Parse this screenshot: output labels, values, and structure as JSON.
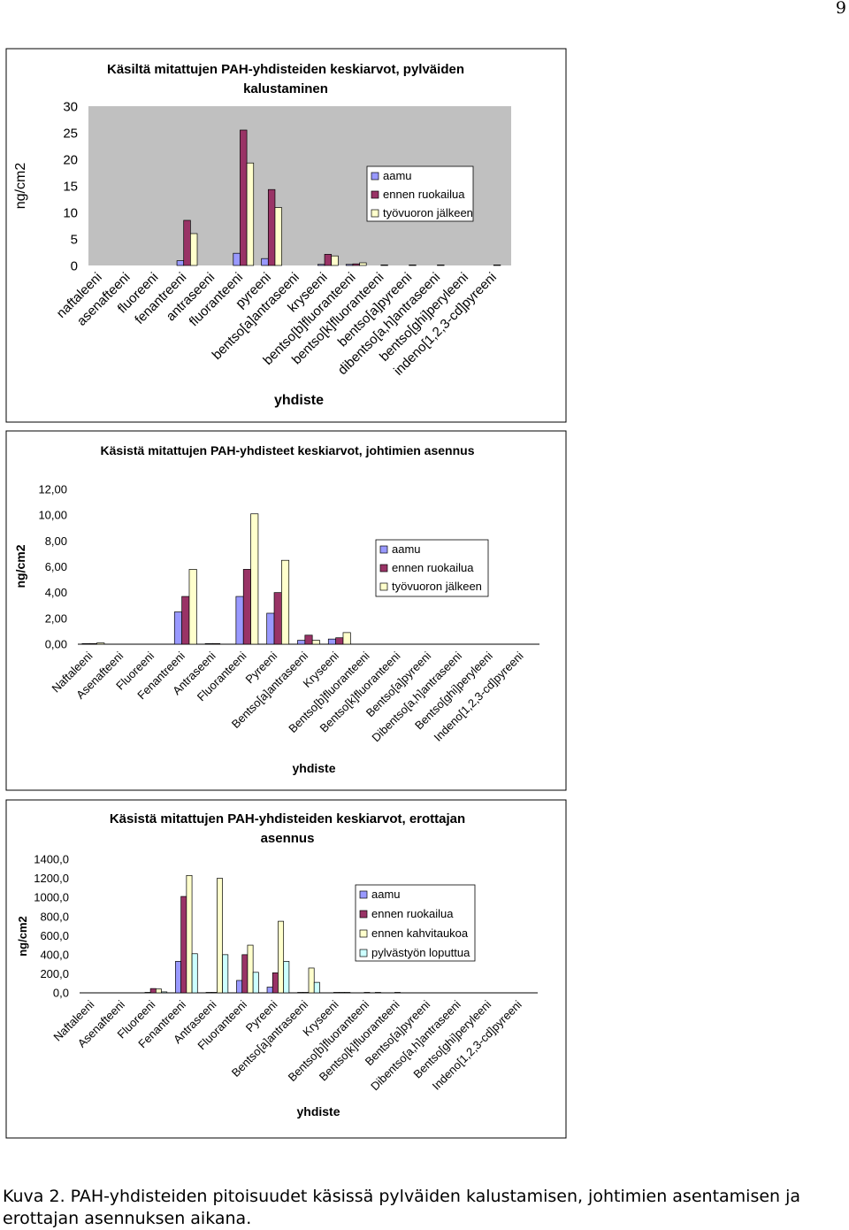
{
  "page_number": "9",
  "chart_data": [
    {
      "type": "bar",
      "title": "Käsiltä mitattujen PAH-yhdisteiden keskiarvot, pylväiden kalustaminen",
      "y_label": "ng/cm2",
      "x_label": "yhdiste",
      "plot_background": "#c0c0c0",
      "categories": [
        "naftaleeni",
        "asenafteeni",
        "fluoreeni",
        "fenantreeni",
        "antraseeni",
        "fluoranteeni",
        "pyreeni",
        "bentso[a]antraseeni",
        "kryseeni",
        "bentso[b]fluoranteeni",
        "bentso[k]fluoranteeni",
        "bentso[a]pyreeni",
        "dibentso[a,h]antraseeni",
        "bentso[ghi]peryleeni",
        "indeno[1,2,3-cd]pyreeni"
      ],
      "series": [
        {
          "name": "aamu",
          "color": "#9999ff",
          "values": [
            0,
            0,
            0,
            0.9,
            0,
            2.3,
            1.3,
            0,
            0.2,
            0.2,
            0,
            0,
            0,
            0,
            0
          ]
        },
        {
          "name": "ennen ruokailua",
          "color": "#993366",
          "values": [
            0,
            0,
            0,
            8.5,
            0,
            25.5,
            14.3,
            0,
            2.1,
            0.3,
            0.1,
            0.1,
            0.1,
            0,
            0.1
          ]
        },
        {
          "name": "työvuoron jälkeen",
          "color": "#ffffcc",
          "values": [
            0,
            0,
            0,
            6.0,
            0,
            19.3,
            10.9,
            0,
            1.8,
            0.5,
            0,
            0,
            0,
            0,
            0
          ]
        }
      ],
      "ylim": [
        0,
        30
      ],
      "yticks": [
        0,
        5,
        10,
        15,
        20,
        25,
        30
      ]
    },
    {
      "type": "bar",
      "title": "Käsistä mitattujen PAH-yhdisteet keskiarvot, johtimien asennus",
      "y_label": "ng/cm2",
      "x_label": "yhdiste",
      "plot_background": "#ffffff",
      "categories": [
        "Naftaleeni",
        "Asenafteeni",
        "Fluoreeni",
        "Fenantreeni",
        "Antraseeni",
        "Fluoranteeni",
        "Pyreeni",
        "Bentso[a]antraseeni",
        "Kryseeni",
        "Bentso[b]fluoranteeni",
        "Bentso[k]fluoranteeni",
        "Bentso[a]pyreeni",
        "Dibentso[a,h]antraseeni",
        "Bentso[ghi]peryleeni",
        "Indeno[1,2,3-cd]pyreeni"
      ],
      "series": [
        {
          "name": "aamu",
          "color": "#9999ff",
          "values": [
            0.05,
            0,
            0,
            2.5,
            0.05,
            3.7,
            2.4,
            0.3,
            0.4,
            0,
            0,
            0,
            0,
            0,
            0
          ]
        },
        {
          "name": "ennen ruokailua",
          "color": "#993366",
          "values": [
            0.05,
            0,
            0,
            3.7,
            0.05,
            5.8,
            4.0,
            0.7,
            0.5,
            0,
            0,
            0,
            0,
            0,
            0
          ]
        },
        {
          "name": "työvuoron jälkeen",
          "color": "#ffffcc",
          "values": [
            0.1,
            0,
            0,
            5.8,
            0,
            10.1,
            6.5,
            0.3,
            0.9,
            0,
            0,
            0,
            0,
            0,
            0
          ]
        }
      ],
      "ylim": [
        0,
        12
      ],
      "yticks": [
        {
          "value": 0,
          "label": "0,00"
        },
        {
          "value": 2,
          "label": "2,00"
        },
        {
          "value": 4,
          "label": "4,00"
        },
        {
          "value": 6,
          "label": "6,00"
        },
        {
          "value": 8,
          "label": "8,00"
        },
        {
          "value": 10,
          "label": "10,00"
        },
        {
          "value": 12,
          "label": "12,00"
        }
      ]
    },
    {
      "type": "bar",
      "title": "Käsistä mitattujen PAH-yhdisteiden keskiarvot, erottajan asennus",
      "y_label": "ng/cm2",
      "x_label": "yhdiste",
      "plot_background": "#ffffff",
      "categories": [
        "Naftaleeni",
        "Asenafteeni",
        "Fluoreeni",
        "Fenantreeni",
        "Antraseeni",
        "Fluoranteeni",
        "Pyreeni",
        "Bentso[a]antraseeni",
        "Kryseeni",
        "Bentso[b]fluoranteeni",
        "Bentso[k]fluoranteeni",
        "Bentso[a]pyreeni",
        "Dibentso[a,h]antraseeni",
        "Bentso[ghi]peryleeni",
        "Indeno[1,2,3-cd]pyreeni"
      ],
      "series": [
        {
          "name": "aamu",
          "color": "#9999ff",
          "values": [
            0,
            0,
            5,
            330,
            5,
            130,
            60,
            5,
            0,
            0,
            0,
            0,
            0,
            0,
            0
          ]
        },
        {
          "name": "ennen ruokailua",
          "color": "#993366",
          "values": [
            0,
            0,
            45,
            1010,
            5,
            400,
            210,
            5,
            5,
            5,
            5,
            0,
            0,
            0,
            0
          ]
        },
        {
          "name": "ennen kahvitaukoa",
          "color": "#ffffcc",
          "values": [
            0,
            0,
            40,
            1230,
            1200,
            500,
            750,
            260,
            5,
            0,
            0,
            0,
            0,
            0,
            0
          ]
        },
        {
          "name": "pylvästyön loputtua",
          "color": "#ccffff",
          "values": [
            0,
            0,
            10,
            410,
            400,
            215,
            330,
            110,
            5,
            5,
            0,
            0,
            0,
            0,
            0
          ]
        }
      ],
      "ylim": [
        0,
        1400
      ],
      "yticks": [
        {
          "value": 0,
          "label": "0,0"
        },
        {
          "value": 200,
          "label": "200,0"
        },
        {
          "value": 400,
          "label": "400,0"
        },
        {
          "value": 600,
          "label": "600,0"
        },
        {
          "value": 800,
          "label": "800,0"
        },
        {
          "value": 1000,
          "label": "1000,0"
        },
        {
          "value": 1200,
          "label": "1200,0"
        },
        {
          "value": 1400,
          "label": "1400,0"
        }
      ]
    }
  ],
  "caption": "Kuva 2. PAH-yhdisteiden pitoisuudet käsissä pylväiden kalustamisen, johtimien asentamisen ja erottajan asennuksen aikana."
}
